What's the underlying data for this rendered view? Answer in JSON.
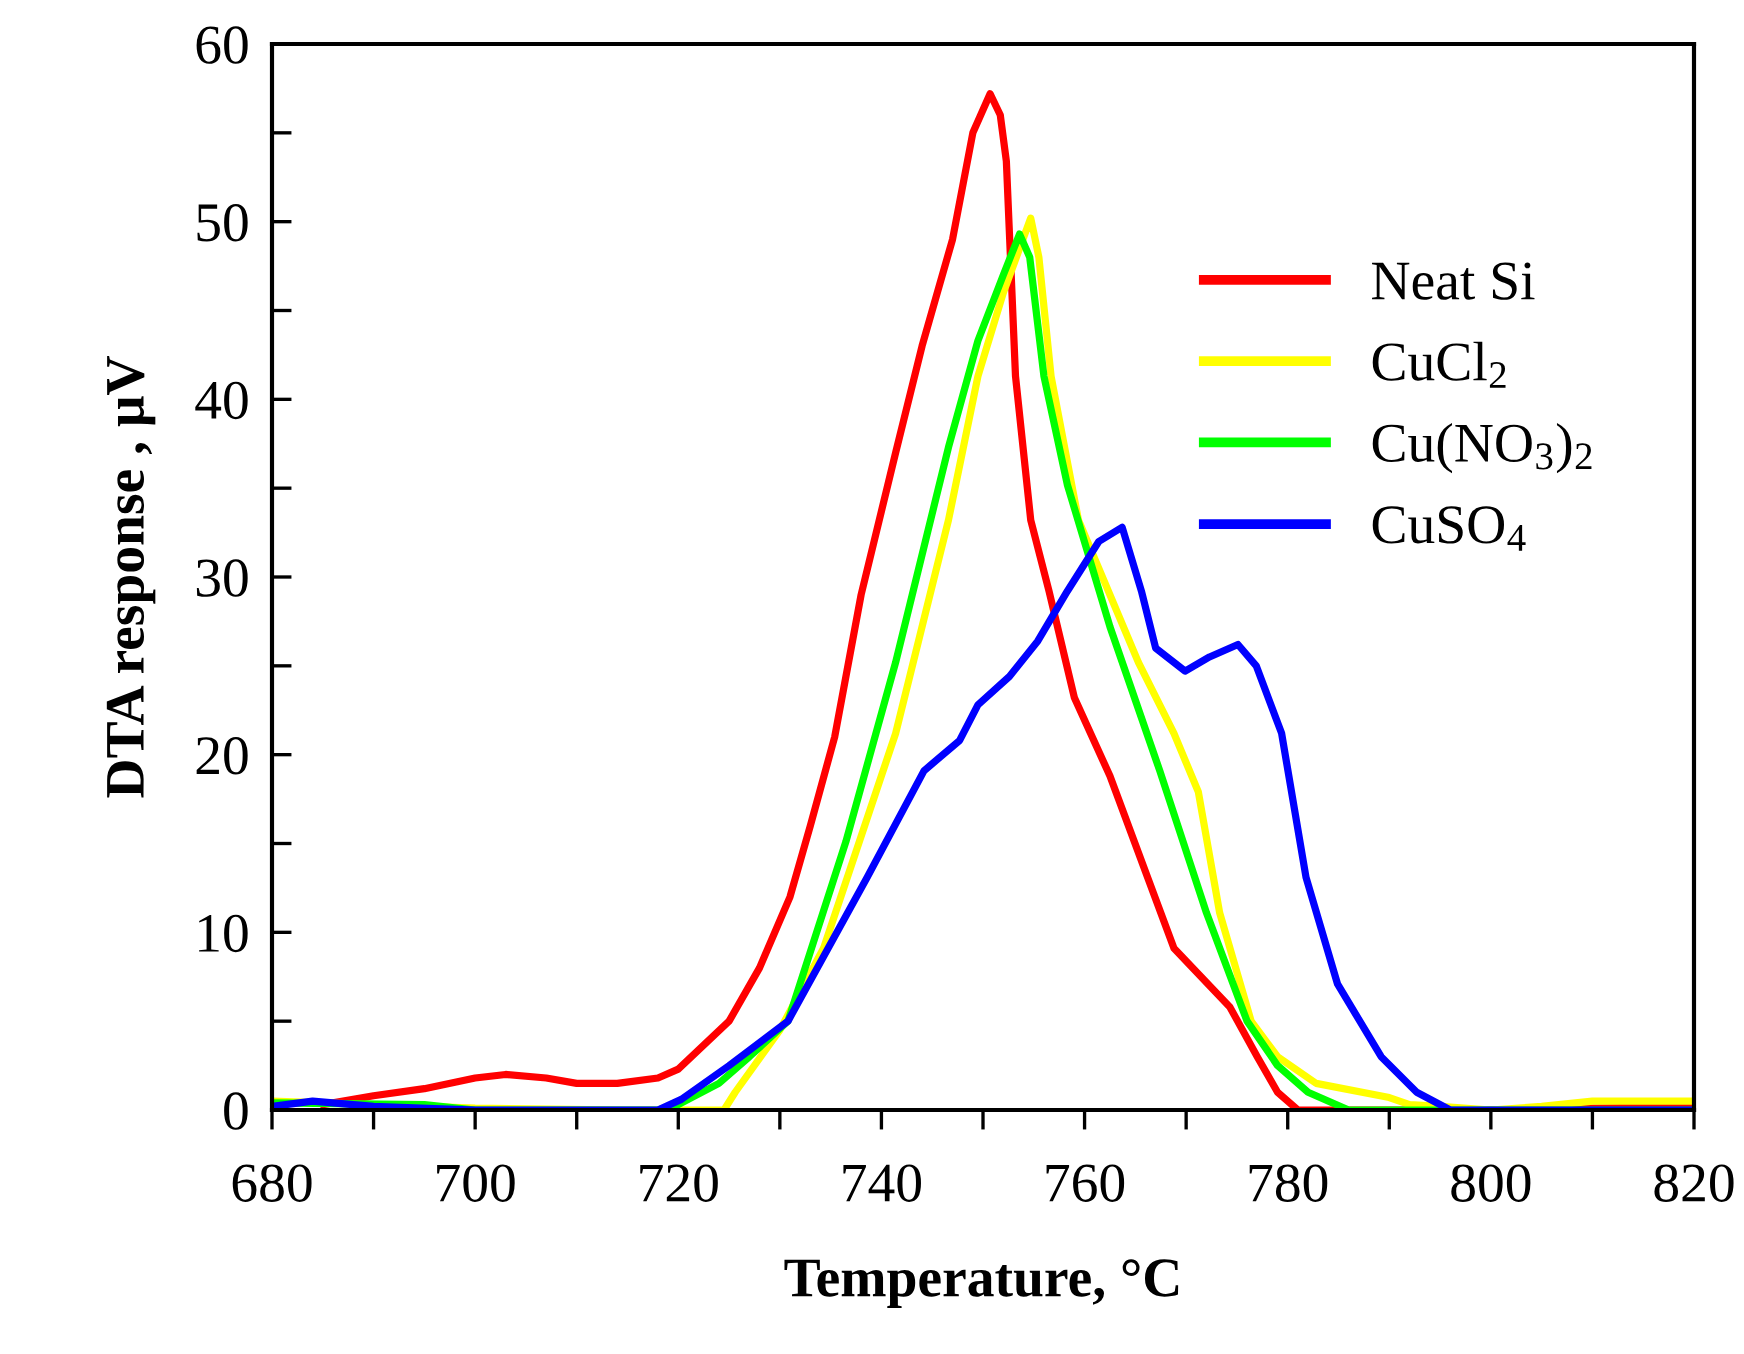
{
  "chart_data": {
    "type": "line",
    "xlabel": "Temperature, °C",
    "ylabel": "DTA response , μV",
    "xlim": [
      680,
      820
    ],
    "ylim": [
      0,
      60
    ],
    "xticks": [
      680,
      {
        "value": 690,
        "label": null
      },
      700,
      {
        "value": 710,
        "label": null
      },
      720,
      {
        "value": 730,
        "label": null
      },
      740,
      {
        "value": 750,
        "label": null
      },
      760,
      {
        "value": 770,
        "label": null
      },
      780,
      {
        "value": 790,
        "label": null
      },
      800,
      {
        "value": 810,
        "label": null
      },
      820
    ],
    "yticks": [
      0,
      {
        "value": 5,
        "label": null
      },
      10,
      {
        "value": 15,
        "label": null
      },
      20,
      {
        "value": 25,
        "label": null
      },
      30,
      {
        "value": 35,
        "label": null
      },
      40,
      {
        "value": 45,
        "label": null
      },
      50,
      {
        "value": 55,
        "label": null
      },
      60
    ],
    "grid": false,
    "legend": "top right",
    "marker": "none",
    "line_style": "solid",
    "series": [
      {
        "name": "Neat Si",
        "color": "#ff0000",
        "x": [
          685,
          690,
          695,
          700,
          703,
          707,
          710,
          714,
          718,
          720,
          725,
          728,
          731,
          733,
          735.4,
          738,
          741.4,
          744,
          747,
          749,
          750.7,
          751.7,
          752.3,
          753.2,
          754.7,
          756.5,
          759,
          762.5,
          766.2,
          768.8,
          774.3,
          777,
          779,
          781,
          800,
          810,
          820
        ],
        "values": [
          0.3,
          0.8,
          1.2,
          1.8,
          2.0,
          1.8,
          1.5,
          1.5,
          1.8,
          2.3,
          5,
          8,
          12,
          16,
          21,
          29,
          37,
          43,
          49,
          55,
          57.2,
          56,
          53.4,
          41.3,
          33.2,
          29.2,
          23.2,
          18.8,
          13.1,
          9.1,
          5.8,
          3,
          1,
          0,
          0,
          0.1,
          0.2
        ]
      },
      {
        "name": "CuCl$_{2}$",
        "color": "#ffff00",
        "x": [
          680,
          700,
          715,
          724.5,
          725.6,
          730,
          734.3,
          741.4,
          746.6,
          749.5,
          752,
          754.7,
          755.5,
          756.7,
          759.4,
          765.3,
          768.8,
          771.2,
          773.3,
          776.4,
          779,
          782.8,
          790,
          792,
          795,
          800,
          805,
          810,
          820
        ],
        "values": [
          0.5,
          0.1,
          0,
          0,
          1,
          4.5,
          9.1,
          21.2,
          33.2,
          41.3,
          46,
          50.2,
          48,
          41.3,
          33.2,
          25.2,
          21.2,
          17.9,
          11.1,
          5,
          3,
          1.5,
          0.7,
          0.3,
          0.2,
          0,
          0.2,
          0.5,
          0.5
        ]
      },
      {
        "name": "Cu(NO$_{3}$)$_{2}$",
        "color": "#00ff00",
        "x": [
          680,
          695,
          700,
          718,
          720,
          724,
          727,
          730.8,
          736.5,
          741.4,
          746.6,
          749.5,
          752,
          753.6,
          754.6,
          756,
          758.3,
          762.5,
          767.4,
          772,
          776,
          779,
          782,
          786,
          820
        ],
        "values": [
          0.4,
          0.3,
          0,
          0,
          0.3,
          1.5,
          3,
          5,
          15.1,
          25.2,
          37.3,
          43.3,
          47,
          49.3,
          48,
          41.3,
          35.2,
          27.2,
          19.1,
          11.1,
          5,
          2.5,
          1,
          0,
          0
        ]
      },
      {
        "name": "CuSO$_{4}$",
        "color": "#0000ff",
        "x": [
          680,
          684,
          690,
          700,
          718,
          720.3,
          725,
          730.8,
          738.6,
          744.2,
          747.7,
          749.5,
          752.6,
          755.4,
          758.3,
          761.4,
          763.7,
          765.6,
          767,
          769.9,
          772.3,
          775.1,
          776.9,
          779.4,
          781.8,
          784.9,
          789.2,
          792.7,
          796,
          820
        ],
        "values": [
          0.2,
          0.5,
          0.2,
          0,
          0,
          0.6,
          2.5,
          5,
          13.1,
          19.1,
          20.8,
          22.8,
          24.4,
          26.4,
          29.2,
          32,
          32.8,
          29.2,
          26,
          24.7,
          25.5,
          26.2,
          25,
          21.2,
          13.1,
          7.1,
          3,
          1,
          0,
          0
        ]
      }
    ]
  }
}
